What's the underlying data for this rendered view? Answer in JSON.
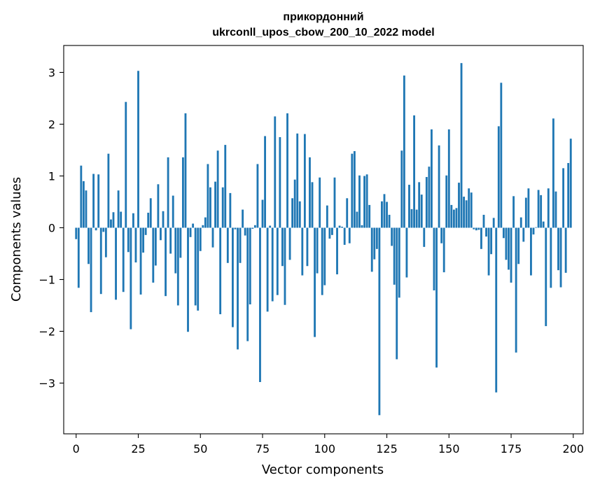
{
  "chart_data": {
    "type": "bar",
    "title": "прикордонний",
    "subtitle": "ukrconll_upos_cbow_200_10_2022 model",
    "xlabel": "Vector components",
    "ylabel": "Components values",
    "xlim": [
      -5,
      204
    ],
    "ylim": [
      -3.98,
      3.52
    ],
    "xticks": [
      0,
      25,
      50,
      75,
      100,
      125,
      150,
      175,
      200
    ],
    "yticks": [
      -3,
      -2,
      -1,
      0,
      1,
      2,
      3
    ],
    "ytick_labels": [
      "−3",
      "−2",
      "−1",
      "0",
      "1",
      "2",
      "3"
    ],
    "bar_color": "#1f77b4",
    "values": [
      -0.22,
      -1.16,
      1.2,
      0.9,
      0.72,
      -0.7,
      -1.63,
      1.04,
      -0.05,
      1.03,
      -1.28,
      -0.08,
      -0.57,
      1.43,
      0.16,
      0.3,
      -1.39,
      0.72,
      0.31,
      -1.24,
      2.43,
      -0.47,
      -1.96,
      0.28,
      -0.67,
      3.03,
      -1.29,
      -0.48,
      -0.14,
      0.29,
      0.57,
      -1.06,
      -0.73,
      0.84,
      -0.24,
      0.32,
      -1.32,
      1.36,
      -0.5,
      0.62,
      -0.88,
      -1.5,
      -0.58,
      1.36,
      2.21,
      -2.01,
      -0.18,
      0.08,
      -1.5,
      -1.6,
      -0.45,
      0.05,
      0.2,
      1.23,
      0.78,
      -0.38,
      0.89,
      1.49,
      -1.67,
      0.78,
      1.6,
      -0.68,
      0.67,
      -1.92,
      -0.03,
      -2.35,
      -0.68,
      0.35,
      -0.15,
      -2.19,
      -1.48,
      -0.02,
      0.05,
      1.23,
      -2.98,
      0.54,
      1.77,
      -1.62,
      0.04,
      -1.42,
      2.15,
      -1.3,
      1.75,
      -0.74,
      -1.49,
      2.21,
      -0.62,
      0.57,
      0.93,
      1.82,
      0.51,
      -0.92,
      1.81,
      -0.74,
      1.36,
      0.88,
      -2.11,
      -0.88,
      0.97,
      -1.3,
      -1.11,
      0.43,
      -0.21,
      -0.14,
      0.97,
      -0.9,
      0.04,
      0.02,
      -0.33,
      0.57,
      -0.3,
      1.43,
      1.48,
      0.31,
      1.01,
      0.05,
      1.0,
      1.03,
      0.44,
      -0.85,
      -0.61,
      -0.41,
      -3.62,
      0.51,
      0.65,
      0.5,
      0.25,
      -0.35,
      -1.1,
      -2.54,
      -1.35,
      1.49,
      2.94,
      -0.96,
      0.83,
      0.36,
      2.17,
      0.35,
      0.88,
      0.64,
      -0.37,
      0.98,
      1.18,
      1.9,
      -1.21,
      -2.7,
      1.59,
      -0.3,
      -0.86,
      1.01,
      1.9,
      0.44,
      0.35,
      0.38,
      0.87,
      3.18,
      0.6,
      0.53,
      0.76,
      0.68,
      -0.03,
      -0.05,
      -0.04,
      -0.41,
      0.25,
      -0.17,
      -0.92,
      -0.51,
      0.19,
      -3.18,
      1.96,
      2.8,
      -0.2,
      -0.62,
      -0.81,
      -1.06,
      0.61,
      -2.41,
      -0.7,
      0.2,
      -0.27,
      0.58,
      0.76,
      -0.92,
      -0.13,
      0.01,
      0.73,
      0.63,
      0.12,
      -1.9,
      0.76,
      -1.16,
      2.11,
      0.7,
      -0.82,
      -1.15,
      1.15,
      -0.87,
      1.25,
      1.72
    ]
  }
}
